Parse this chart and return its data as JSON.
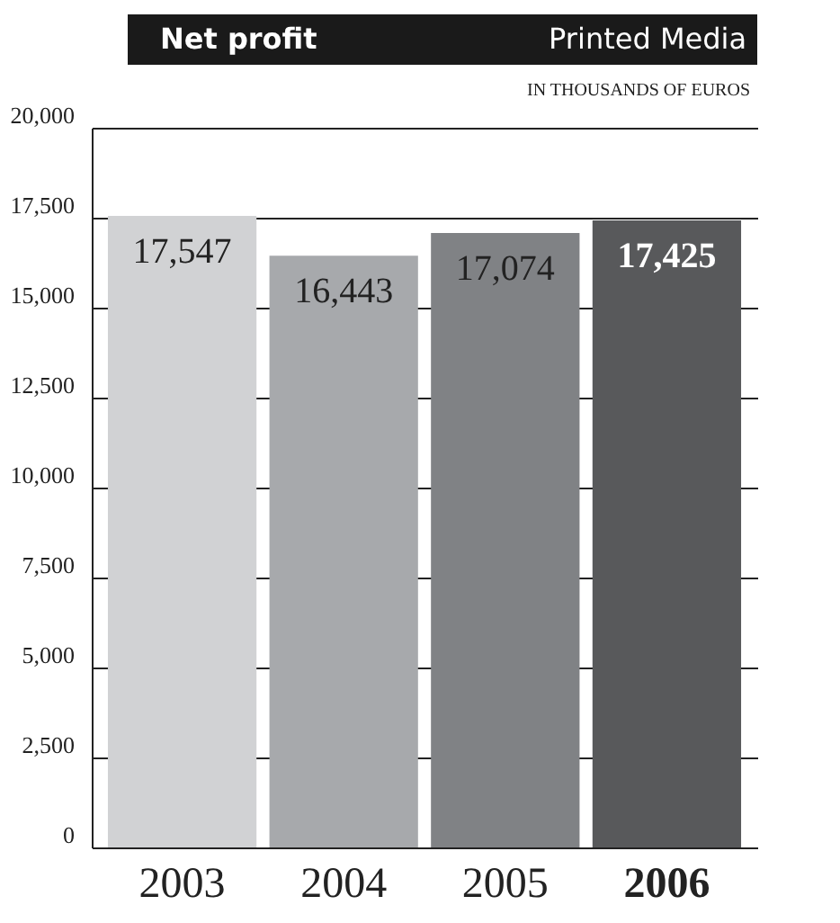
{
  "chart_data": {
    "type": "bar",
    "title": "Net profit",
    "subtitle": "Printed Media",
    "ylabel": "IN THOUSANDS OF EUROS",
    "categories": [
      "2003",
      "2004",
      "2005",
      "2006"
    ],
    "values": [
      17547,
      16443,
      17074,
      17425
    ],
    "colors": [
      "#d1d2d4",
      "#a7a9ac",
      "#808285",
      "#58595b"
    ],
    "ylim": [
      0,
      20000
    ],
    "yticks": [
      {
        "value": 0,
        "label": "0"
      },
      {
        "value": 2500,
        "label": "2,500"
      },
      {
        "value": 5000,
        "label": "5,000"
      },
      {
        "value": 7500,
        "label": "7,500"
      },
      {
        "value": 10000,
        "label": "10,000"
      },
      {
        "value": 12500,
        "label": "12,500"
      },
      {
        "value": 15000,
        "label": "15,000"
      },
      {
        "value": 17500,
        "label": "17,500"
      },
      {
        "value": 20000,
        "label": "20,000"
      }
    ],
    "value_labels": [
      "17,547",
      "16,443",
      "17,074",
      "17,425"
    ],
    "grid": "y"
  }
}
